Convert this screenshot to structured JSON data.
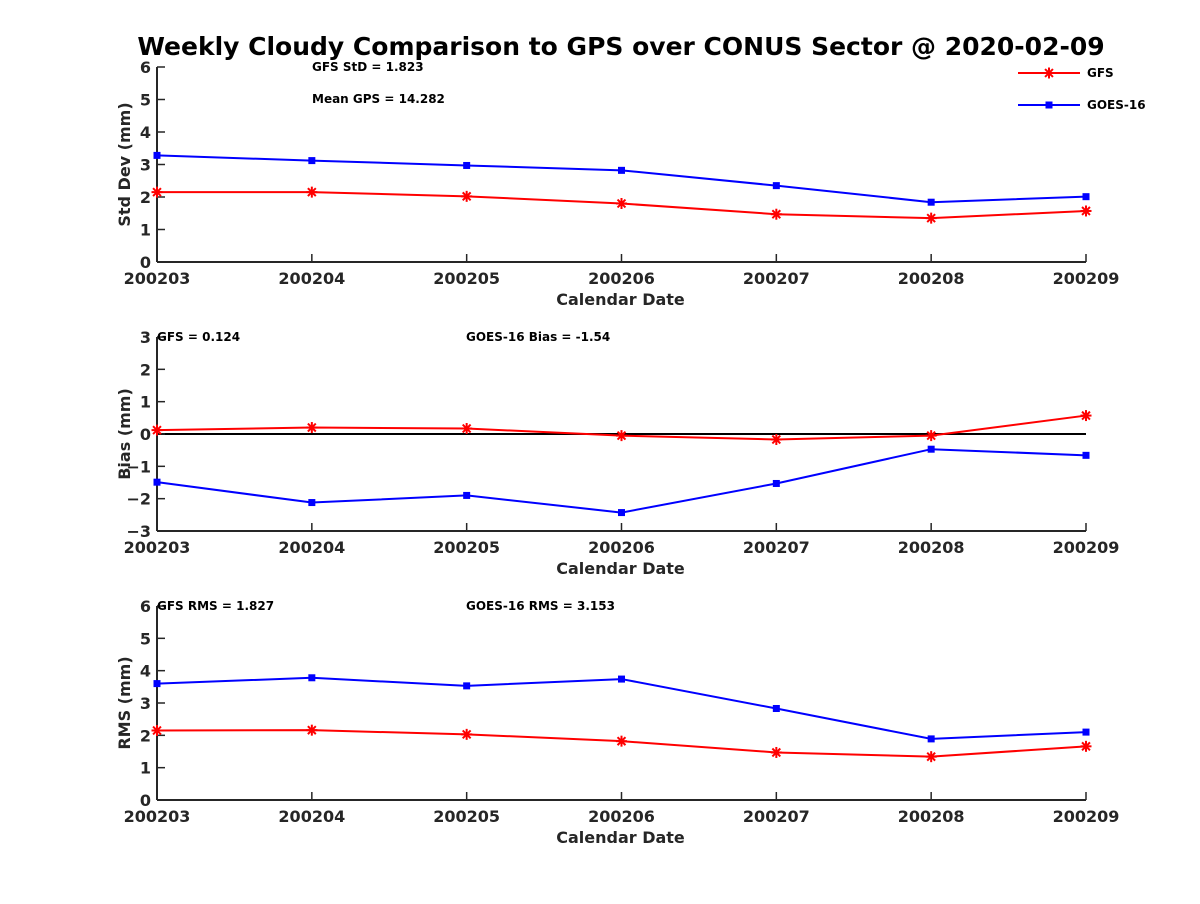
{
  "figure": {
    "title": "Weekly Cloudy Comparison to GPS over CONUS Sector @ 2020-02-09"
  },
  "legend": {
    "placement": "top-right",
    "entries": [
      {
        "name": "GFS",
        "color": "#ff0000",
        "marker": "asterisk"
      },
      {
        "name": "GOES-16",
        "color": "#0000ff",
        "marker": "square"
      }
    ]
  },
  "chart_data": [
    {
      "type": "line",
      "xlabel": "Calendar Date",
      "ylabel": "Std Dev (mm)",
      "x": [
        "200203",
        "200204",
        "200205",
        "200206",
        "200207",
        "200208",
        "200209"
      ],
      "ylim": [
        0,
        6
      ],
      "yticks": [
        0,
        1,
        2,
        3,
        4,
        5,
        6
      ],
      "grid": false,
      "zero_line": false,
      "annotations": [
        "GFS StD = 1.823",
        "Mean GPS = 14.282"
      ],
      "series": [
        {
          "name": "GFS",
          "color": "#ff0000",
          "marker": "asterisk",
          "values": [
            2.15,
            2.15,
            2.02,
            1.8,
            1.47,
            1.35,
            1.57
          ]
        },
        {
          "name": "GOES-16",
          "color": "#0000ff",
          "marker": "square",
          "values": [
            3.28,
            3.12,
            2.97,
            2.82,
            2.35,
            1.84,
            2.01
          ]
        }
      ]
    },
    {
      "type": "line",
      "xlabel": "Calendar Date",
      "ylabel": "Bias (mm)",
      "x": [
        "200203",
        "200204",
        "200205",
        "200206",
        "200207",
        "200208",
        "200209"
      ],
      "ylim": [
        -3,
        3
      ],
      "yticks": [
        -3,
        -2,
        -1,
        0,
        1,
        2,
        3
      ],
      "grid": false,
      "zero_line": true,
      "annotations": [
        "GFS = 0.124",
        "GOES-16 Bias  = -1.54"
      ],
      "series": [
        {
          "name": "GFS",
          "color": "#ff0000",
          "marker": "asterisk",
          "values": [
            0.12,
            0.2,
            0.17,
            -0.05,
            -0.17,
            -0.05,
            0.57
          ]
        },
        {
          "name": "GOES-16",
          "color": "#0000ff",
          "marker": "square",
          "values": [
            -1.49,
            -2.12,
            -1.9,
            -2.43,
            -1.53,
            -0.47,
            -0.66
          ]
        }
      ]
    },
    {
      "type": "line",
      "xlabel": "Calendar Date",
      "ylabel": "RMS (mm)",
      "x": [
        "200203",
        "200204",
        "200205",
        "200206",
        "200207",
        "200208",
        "200209"
      ],
      "ylim": [
        0,
        6
      ],
      "yticks": [
        0,
        1,
        2,
        3,
        4,
        5,
        6
      ],
      "grid": false,
      "zero_line": false,
      "annotations": [
        "GFS RMS = 1.827",
        "GOES-16 RMS = 3.153"
      ],
      "series": [
        {
          "name": "GFS",
          "color": "#ff0000",
          "marker": "asterisk",
          "values": [
            2.15,
            2.16,
            2.03,
            1.82,
            1.47,
            1.34,
            1.66
          ]
        },
        {
          "name": "GOES-16",
          "color": "#0000ff",
          "marker": "square",
          "values": [
            3.6,
            3.78,
            3.53,
            3.74,
            2.83,
            1.89,
            2.1
          ]
        }
      ]
    }
  ]
}
